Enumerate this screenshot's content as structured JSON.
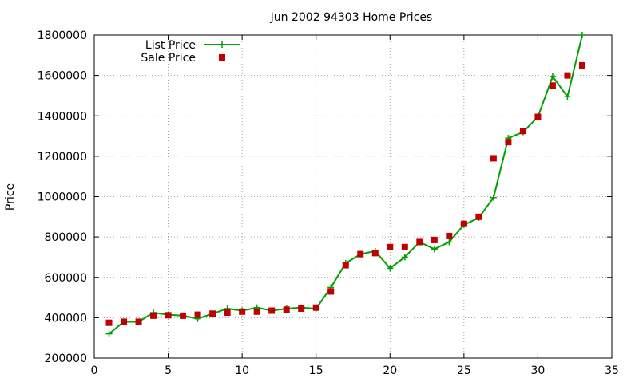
{
  "chart_data": {
    "type": "line",
    "title": "Jun 2002 94303 Home Prices",
    "xlabel": "",
    "ylabel": "Price",
    "xlim": [
      0,
      35
    ],
    "ylim": [
      200000,
      1800000
    ],
    "x_ticks": [
      0,
      5,
      10,
      15,
      20,
      25,
      30,
      35
    ],
    "y_ticks": [
      200000,
      400000,
      600000,
      800000,
      1000000,
      1200000,
      1400000,
      1600000,
      1800000
    ],
    "grid": true,
    "legend_position": "top-left",
    "series": [
      {
        "name": "List Price",
        "style": "line-plus",
        "color": "#00a000",
        "x": [
          1,
          2,
          3,
          4,
          5,
          6,
          7,
          8,
          9,
          10,
          11,
          12,
          13,
          14,
          15,
          16,
          17,
          18,
          19,
          20,
          21,
          22,
          23,
          24,
          25,
          26,
          27,
          28,
          29,
          30,
          31,
          32,
          33
        ],
        "values": [
          320000,
          380000,
          380000,
          425000,
          415000,
          410000,
          395000,
          420000,
          445000,
          435000,
          450000,
          435000,
          445000,
          450000,
          445000,
          550000,
          670000,
          715000,
          730000,
          645000,
          700000,
          775000,
          740000,
          775000,
          860000,
          895000,
          995000,
          1290000,
          1320000,
          1395000,
          1595000,
          1495000,
          1800000
        ]
      },
      {
        "name": "Sale Price",
        "style": "square-marker",
        "color": "#c00000",
        "x": [
          1,
          2,
          3,
          4,
          5,
          6,
          7,
          8,
          9,
          10,
          11,
          12,
          13,
          14,
          15,
          16,
          17,
          18,
          19,
          20,
          21,
          22,
          23,
          24,
          25,
          26,
          27,
          28,
          29,
          30,
          31,
          32,
          33
        ],
        "values": [
          375000,
          380000,
          380000,
          410000,
          412000,
          410000,
          415000,
          420000,
          425000,
          430000,
          430000,
          435000,
          440000,
          445000,
          450000,
          530000,
          660000,
          715000,
          720000,
          750000,
          750000,
          775000,
          785000,
          805000,
          865000,
          900000,
          1190000,
          1270000,
          1325000,
          1395000,
          1550000,
          1600000,
          1650000
        ]
      }
    ]
  }
}
